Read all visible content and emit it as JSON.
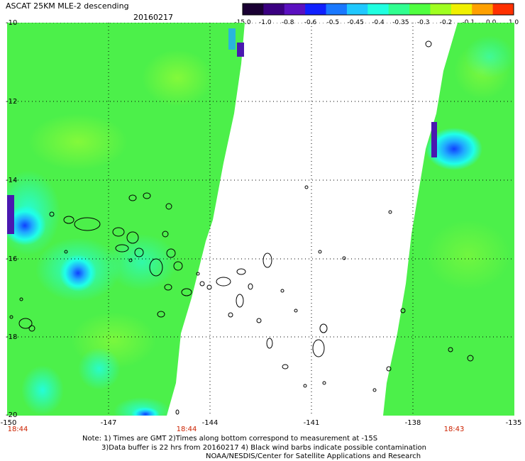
{
  "header": {
    "title": "ASCAT 25KM MLE-2 descending",
    "date": "20160217"
  },
  "colorbar": {
    "labels": [
      "-15.0",
      "-1.0",
      "-0.8",
      "-0.6",
      "-0.5",
      "-0.45",
      "-0.4",
      "-0.35",
      "-0.3",
      "-0.2",
      "-0.1",
      "0.0",
      "1.0"
    ],
    "colors": [
      "#1a0033",
      "#3a0080",
      "#5a10c0",
      "#1020ff",
      "#1a78ff",
      "#20c8ff",
      "#20ffe0",
      "#30ff90",
      "#50ff40",
      "#a0ff20",
      "#f0f000",
      "#ffa000",
      "#ff3000"
    ]
  },
  "axes": {
    "lat_labels": [
      "-10",
      "-12",
      "-14",
      "-16",
      "-18",
      "-20"
    ],
    "lon_labels": [
      "-150",
      "-147",
      "-144",
      "-141",
      "-138",
      "-135"
    ],
    "time_labels": [
      "18:44",
      "18:44",
      "18:43"
    ]
  },
  "notes": {
    "line1": "Note: 1) Times are GMT 2)Times along bottom correspond to measurement at -15S",
    "line2": "3)Data buffer is 22 hrs from 20160217 4) Black wind barbs indicate possible contamination",
    "line3": "NOAA/NESDIS/Center for Satellite Applications and Research"
  },
  "colors": {
    "background_field": "#4cf04a",
    "cyan": "#20ffe8",
    "blue": "#1040ff",
    "purple": "#4a18b0",
    "time_label": "#cc2200"
  }
}
